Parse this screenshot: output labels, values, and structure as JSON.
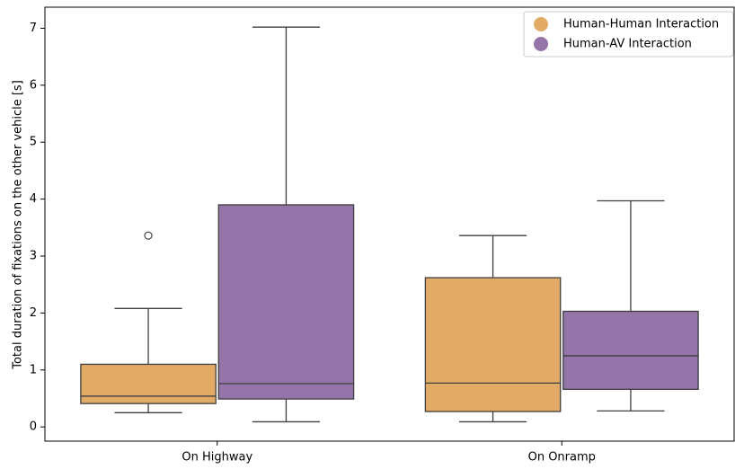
{
  "chart_data": {
    "type": "box",
    "ylabel": "Total duration of fixations on the other vehicle [s]",
    "categories": [
      "On Highway",
      "On Onramp"
    ],
    "series": [
      {
        "name": "Human-Human Interaction",
        "color": "#e2ab65",
        "values": [
          {
            "low": 0.25,
            "q1": 0.41,
            "median": 0.54,
            "q3": 1.1,
            "high": 2.08,
            "outliers": [
              3.36
            ]
          },
          {
            "low": 0.09,
            "q1": 0.27,
            "median": 0.77,
            "q3": 2.62,
            "high": 3.36,
            "outliers": []
          }
        ]
      },
      {
        "name": "Human-AV Interaction",
        "color": "#9575a9",
        "values": [
          {
            "low": 0.09,
            "q1": 0.49,
            "median": 0.76,
            "q3": 3.9,
            "high": 7.02,
            "outliers": []
          },
          {
            "low": 0.28,
            "q1": 0.66,
            "median": 1.25,
            "q3": 2.03,
            "high": 3.97,
            "outliers": []
          }
        ]
      }
    ],
    "ylim": [
      -0.25,
      7.37
    ],
    "yticks": [
      0,
      1,
      2,
      3,
      4,
      5,
      6,
      7
    ],
    "legend": "upper right"
  }
}
